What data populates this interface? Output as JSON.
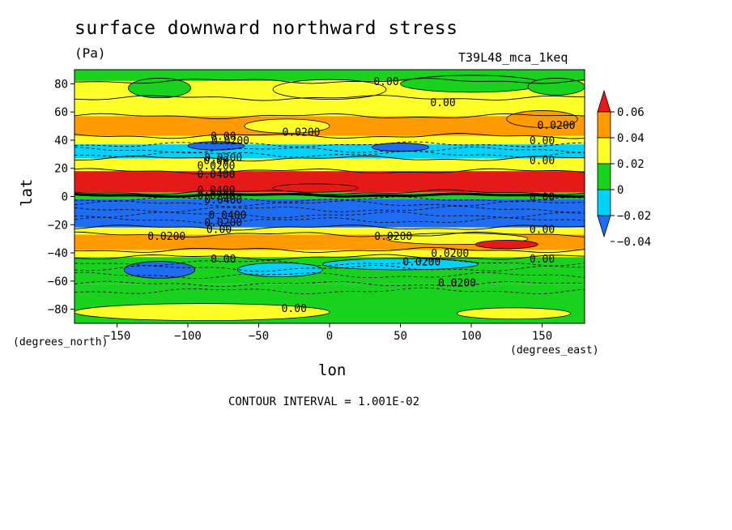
{
  "chart_data": {
    "type": "heatmap",
    "title": "surface downward northward stress",
    "units": "(Pa)",
    "run_label": "T39L48_mca_1keq",
    "xlabel": "lon",
    "ylabel": "lat",
    "x_units": "(degrees_east)",
    "y_units": "(degrees_north)",
    "xlim": [
      -180,
      180
    ],
    "ylim": [
      -90,
      90
    ],
    "x_ticks": [
      -150,
      -100,
      -50,
      0,
      50,
      100,
      150
    ],
    "y_ticks": [
      80,
      60,
      40,
      20,
      0,
      -20,
      -40,
      -60,
      -80
    ],
    "contour_note": "CONTOUR INTERVAL = 1.001E-02",
    "colorbar": {
      "levels": [
        -0.04,
        -0.02,
        0,
        0.02,
        0.04,
        0.06
      ],
      "tick_labels": [
        "0.06",
        "0.04",
        "0.02",
        "0",
        "−0.02",
        "−0.04"
      ],
      "colors": [
        "#1e6cf0",
        "#00d2fa",
        "#19d21e",
        "#ffff28",
        "#ff9b00",
        "#e61919"
      ]
    },
    "zonal_bands": [
      {
        "lat_from": 90,
        "lat_to": 82,
        "value": -0.01
      },
      {
        "lat_from": 82,
        "lat_to": 70,
        "value": 0.005
      },
      {
        "lat_from": 70,
        "lat_to": 57,
        "value": 0.005
      },
      {
        "lat_from": 57,
        "lat_to": 43,
        "value": 0.025
      },
      {
        "lat_from": 43,
        "lat_to": 37,
        "value": 0.005
      },
      {
        "lat_from": 37,
        "lat_to": 27,
        "value": -0.03
      },
      {
        "lat_from": 27,
        "lat_to": 18,
        "value": 0.015
      },
      {
        "lat_from": 18,
        "lat_to": 3,
        "value": 0.045
      },
      {
        "lat_from": 3,
        "lat_to": -2,
        "value": -0.01
      },
      {
        "lat_from": -2,
        "lat_to": -22,
        "value": -0.05
      },
      {
        "lat_from": -22,
        "lat_to": -27,
        "value": 0.01
      },
      {
        "lat_from": -27,
        "lat_to": -38,
        "value": 0.025
      },
      {
        "lat_from": -38,
        "lat_to": -43,
        "value": 0.01
      },
      {
        "lat_from": -43,
        "lat_to": -62,
        "value": -0.01
      },
      {
        "lat_from": -62,
        "lat_to": -90,
        "value": -0.01
      }
    ],
    "patches": [
      {
        "lon": -120,
        "lat": 77,
        "rlon": 22,
        "rlat": 7,
        "value": -0.01
      },
      {
        "lon": 0,
        "lat": 76,
        "rlon": 40,
        "rlat": 7,
        "value": 0.005
      },
      {
        "lon": 100,
        "lat": 80,
        "rlon": 50,
        "rlat": 6,
        "value": -0.01
      },
      {
        "lon": 160,
        "lat": 78,
        "rlon": 20,
        "rlat": 6,
        "value": -0.01
      },
      {
        "lon": -30,
        "lat": 50,
        "rlon": 30,
        "rlat": 5,
        "value": 0.015
      },
      {
        "lon": 150,
        "lat": 55,
        "rlon": 25,
        "rlat": 6,
        "value": 0.035
      },
      {
        "lon": -80,
        "lat": 36,
        "rlon": 20,
        "rlat": 3,
        "value": -0.045
      },
      {
        "lon": 50,
        "lat": 35,
        "rlon": 20,
        "rlat": 3,
        "value": -0.045
      },
      {
        "lon": -10,
        "lat": 6,
        "rlon": 30,
        "rlat": 3,
        "value": 0.065
      },
      {
        "lon": 90,
        "lat": -30,
        "rlon": 50,
        "rlat": 4,
        "value": 0.015
      },
      {
        "lon": 125,
        "lat": -34,
        "rlon": 22,
        "rlat": 3,
        "value": 0.045
      },
      {
        "lon": -120,
        "lat": -52,
        "rlon": 25,
        "rlat": 6,
        "value": -0.045
      },
      {
        "lon": 50,
        "lat": -48,
        "rlon": 55,
        "rlat": 4,
        "value": -0.03
      },
      {
        "lon": -35,
        "lat": -52,
        "rlon": 30,
        "rlat": 5,
        "value": -0.03
      },
      {
        "lon": -90,
        "lat": -82,
        "rlon": 90,
        "rlat": 6,
        "value": 0.005
      },
      {
        "lon": 130,
        "lat": -83,
        "rlon": 40,
        "rlat": 4,
        "value": 0.005
      }
    ],
    "contour_labels": [
      {
        "text": "0.00",
        "lon": 40,
        "lat": 82
      },
      {
        "text": "0.00",
        "lon": 80,
        "lat": 67
      },
      {
        "text": "0.0200",
        "lon": -20,
        "lat": 46
      },
      {
        "text": "0.0200",
        "lon": 160,
        "lat": 51
      },
      {
        "text": "0.00",
        "lon": -75,
        "lat": 43
      },
      {
        "text": "0.0200",
        "lon": -70,
        "lat": 40
      },
      {
        "text": "0.00",
        "lon": 150,
        "lat": 40
      },
      {
        "text": "0.0200",
        "lon": -75,
        "lat": 28
      },
      {
        "text": "0.00",
        "lon": -80,
        "lat": 26
      },
      {
        "text": "0.00",
        "lon": 150,
        "lat": 26
      },
      {
        "text": "0.0200",
        "lon": -80,
        "lat": 22
      },
      {
        "text": "0.0400",
        "lon": -80,
        "lat": 16
      },
      {
        "text": "0.0400",
        "lon": -80,
        "lat": 5
      },
      {
        "text": "0.0200",
        "lon": -80,
        "lat": 1
      },
      {
        "text": "0.0400",
        "lon": -75,
        "lat": -2
      },
      {
        "text": "0.00",
        "lon": 150,
        "lat": 0
      },
      {
        "text": "0.0400",
        "lon": -72,
        "lat": -13
      },
      {
        "text": "0.0200",
        "lon": -75,
        "lat": -18
      },
      {
        "text": "0.00",
        "lon": -78,
        "lat": -23
      },
      {
        "text": "0.00",
        "lon": 150,
        "lat": -23
      },
      {
        "text": "0.0200",
        "lon": -115,
        "lat": -28
      },
      {
        "text": "0.0200",
        "lon": 45,
        "lat": -28
      },
      {
        "text": "0.0200",
        "lon": 85,
        "lat": -40
      },
      {
        "text": "0.0200",
        "lon": 65,
        "lat": -46
      },
      {
        "text": "0.00",
        "lon": -75,
        "lat": -44
      },
      {
        "text": "0.00",
        "lon": 150,
        "lat": -44
      },
      {
        "text": "0.0200",
        "lon": 90,
        "lat": -61
      },
      {
        "text": "0.00",
        "lon": -25,
        "lat": -79
      }
    ]
  }
}
